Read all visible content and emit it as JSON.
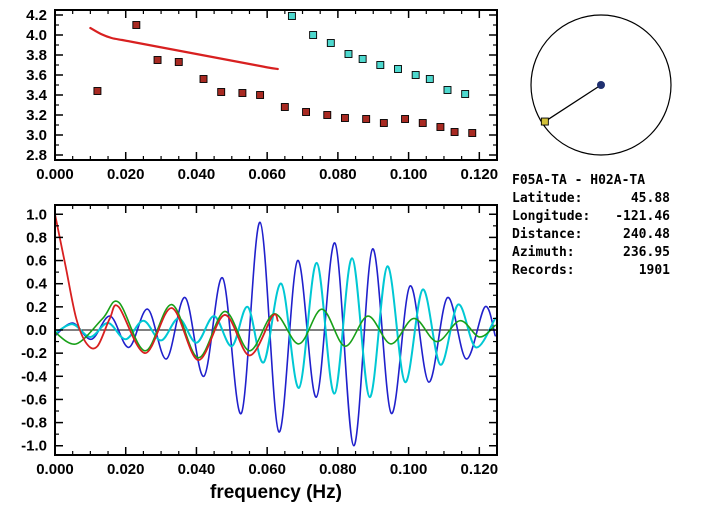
{
  "window": {
    "background": "#ffffff"
  },
  "info_panel": {
    "title": "F05A-TA - H02A-TA",
    "rows": [
      {
        "label": "Latitude:",
        "value": "45.88"
      },
      {
        "label": "Longitude:",
        "value": "-121.46"
      },
      {
        "label": "Distance:",
        "value": "240.48"
      },
      {
        "label": "Azimuth:",
        "value": "236.95"
      },
      {
        "label": "Records:",
        "value": "1901"
      }
    ]
  },
  "azimuth_diagram": {
    "azimuth_deg": 236.95,
    "circle_color": "#000000",
    "center_dot_color": "#203070",
    "endpoint_marker_color": "#d3c13a"
  },
  "chart_data": [
    {
      "id": "dispersion-plot",
      "type": "scatter",
      "title": "",
      "xlabel": "",
      "ylabel": "",
      "xlim": [
        0,
        0.125
      ],
      "ylim": [
        2.75,
        4.25
      ],
      "grid": false,
      "xticks": {
        "values": [
          0,
          0.02,
          0.04,
          0.06,
          0.08,
          0.1,
          0.12
        ],
        "labels": [
          "0.000",
          "0.020",
          "0.040",
          "0.060",
          "0.080",
          "0.100",
          "0.120"
        ]
      },
      "yticks": {
        "values": [
          2.8,
          3.0,
          3.2,
          3.4,
          3.6,
          3.8,
          4.0,
          4.2
        ],
        "labels": [
          "2.8",
          "3.0",
          "3.2",
          "3.4",
          "3.6",
          "3.8",
          "4.0",
          "4.2"
        ]
      },
      "series": [
        {
          "name": "measured-dispersion-squares",
          "kind": "square",
          "color": "#a82a22",
          "edge": "#000000",
          "size": 7,
          "x": [
            0.012,
            0.023,
            0.029,
            0.035,
            0.042,
            0.047,
            0.053,
            0.058,
            0.065,
            0.071,
            0.077,
            0.082,
            0.088,
            0.093,
            0.099,
            0.104,
            0.109,
            0.113,
            0.118
          ],
          "y": [
            3.44,
            4.1,
            3.75,
            3.73,
            3.56,
            3.43,
            3.42,
            3.4,
            3.28,
            3.23,
            3.2,
            3.17,
            3.16,
            3.12,
            3.16,
            3.12,
            3.08,
            3.03,
            3.02
          ]
        },
        {
          "name": "reference-dispersion-squares",
          "kind": "square",
          "color": "#4ed8ce",
          "edge": "#000000",
          "size": 7,
          "x": [
            0.067,
            0.073,
            0.078,
            0.083,
            0.087,
            0.092,
            0.097,
            0.102,
            0.106,
            0.111,
            0.116
          ],
          "y": [
            4.19,
            4.0,
            3.92,
            3.81,
            3.76,
            3.7,
            3.66,
            3.6,
            3.56,
            3.45,
            3.41
          ]
        },
        {
          "name": "phase-velocity-curve",
          "kind": "line",
          "color": "#d82020",
          "width": 2.2,
          "x": [
            0.01,
            0.013,
            0.016,
            0.019,
            0.022,
            0.025,
            0.028,
            0.031,
            0.034,
            0.037,
            0.04,
            0.043,
            0.046,
            0.049,
            0.052,
            0.055,
            0.058,
            0.061,
            0.063
          ],
          "y": [
            4.07,
            4.01,
            3.97,
            3.95,
            3.93,
            3.91,
            3.89,
            3.87,
            3.85,
            3.83,
            3.81,
            3.79,
            3.77,
            3.75,
            3.73,
            3.71,
            3.69,
            3.67,
            3.66
          ]
        }
      ]
    },
    {
      "id": "waveform-plot",
      "type": "line",
      "title": "",
      "xlabel": "frequency (Hz)",
      "ylabel": "",
      "xlim": [
        0,
        0.125
      ],
      "ylim": [
        -1.08,
        1.08
      ],
      "grid": false,
      "zero_line": true,
      "xticks": {
        "values": [
          0,
          0.02,
          0.04,
          0.06,
          0.08,
          0.1,
          0.12
        ],
        "labels": [
          "0.000",
          "0.020",
          "0.040",
          "0.060",
          "0.080",
          "0.100",
          "0.120"
        ]
      },
      "yticks": {
        "values": [
          -1.0,
          -0.8,
          -0.6,
          -0.4,
          -0.2,
          0.0,
          0.2,
          0.4,
          0.6,
          0.8,
          1.0
        ],
        "labels": [
          "-1.0",
          "-0.8",
          "-0.6",
          "-0.4",
          "-0.2",
          "0.0",
          "0.2",
          "0.4",
          "0.6",
          "0.8",
          "1.0"
        ]
      },
      "series": [
        {
          "name": "cross-spectrum-blue",
          "kind": "line",
          "color": "#2020cc",
          "width": 1.6,
          "x": [
            0.0,
            0.005,
            0.0103,
            0.0156,
            0.0209,
            0.0262,
            0.0315,
            0.0368,
            0.0421,
            0.0474,
            0.0527,
            0.058,
            0.0633,
            0.0686,
            0.0739,
            0.0792,
            0.0845,
            0.0898,
            0.0951,
            0.1004,
            0.1057,
            0.111,
            0.1163,
            0.1216,
            0.1245
          ],
          "y": [
            -0.05,
            0.06,
            -0.08,
            0.12,
            -0.15,
            0.18,
            -0.25,
            0.28,
            -0.4,
            0.45,
            -0.72,
            0.93,
            -0.88,
            0.6,
            -0.58,
            0.75,
            -1.0,
            0.7,
            -0.72,
            0.38,
            -0.45,
            0.28,
            -0.25,
            0.2,
            -0.05
          ]
        },
        {
          "name": "cross-spectrum-cyan",
          "kind": "line",
          "color": "#00c8d4",
          "width": 2.0,
          "x": [
            0.0,
            0.005,
            0.01,
            0.015,
            0.02,
            0.025,
            0.03,
            0.035,
            0.04,
            0.045,
            0.05,
            0.0545,
            0.059,
            0.064,
            0.069,
            0.074,
            0.079,
            0.084,
            0.089,
            0.094,
            0.099,
            0.104,
            0.109,
            0.114,
            0.119,
            0.1245
          ],
          "y": [
            -0.03,
            0.05,
            -0.06,
            0.06,
            -0.08,
            0.08,
            -0.09,
            0.1,
            -0.11,
            0.12,
            -0.14,
            0.2,
            -0.28,
            0.4,
            -0.5,
            0.58,
            -0.55,
            0.62,
            -0.58,
            0.55,
            -0.45,
            0.35,
            -0.3,
            0.22,
            -0.15,
            0.1
          ]
        },
        {
          "name": "bessel-fit-green",
          "kind": "line",
          "color": "#18a018",
          "width": 1.6,
          "x": [
            0.0,
            0.006,
            0.0135,
            0.018,
            0.0255,
            0.033,
            0.0405,
            0.048,
            0.055,
            0.062,
            0.069,
            0.0755,
            0.082,
            0.0885,
            0.095,
            0.1015,
            0.108,
            0.1145,
            0.12,
            0.1245
          ],
          "y": [
            -0.02,
            -0.12,
            0.1,
            0.24,
            -0.18,
            0.22,
            -0.24,
            0.16,
            -0.18,
            0.14,
            -0.12,
            0.18,
            -0.14,
            0.12,
            -0.12,
            0.1,
            -0.1,
            0.08,
            -0.06,
            0.04
          ]
        },
        {
          "name": "bessel-fit-red",
          "kind": "line",
          "color": "#d82020",
          "width": 1.8,
          "x": [
            0.0,
            0.003,
            0.006,
            0.009,
            0.012,
            0.0155,
            0.018,
            0.0255,
            0.033,
            0.0405,
            0.048,
            0.055,
            0.0615,
            0.063
          ],
          "y": [
            1.0,
            0.55,
            0.1,
            -0.12,
            -0.14,
            0.1,
            0.2,
            -0.2,
            0.19,
            -0.26,
            0.13,
            -0.22,
            0.12,
            0.08
          ]
        }
      ]
    }
  ]
}
